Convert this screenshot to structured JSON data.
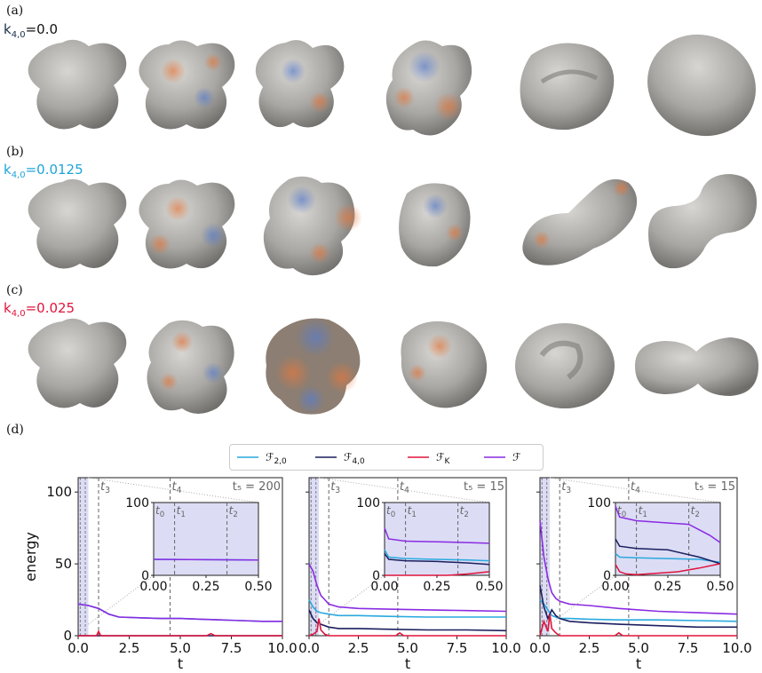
{
  "panels": [
    {
      "label": "(a)",
      "k_name": "k",
      "k_sub": "4,0",
      "k_value": "=0.0",
      "color": "#1a2f4a"
    },
    {
      "label": "(b)",
      "k_name": "k",
      "k_sub": "4,0",
      "k_value": "=0.0125",
      "color": "#1fa4d8"
    },
    {
      "label": "(c)",
      "k_name": "k",
      "k_sub": "4,0",
      "k_value": "=0.025",
      "color": "#e0143c"
    },
    {
      "label": "(d)"
    }
  ],
  "colors": {
    "F20": "#29a9de",
    "F40": "#1b1f5e",
    "FK": "#e0143c",
    "F": "#8a2be2",
    "inset_bg": "#dcdcf5",
    "shape": "#9b9a96"
  },
  "legend": [
    {
      "name": "F",
      "sub": "2,0",
      "color": "#29a9de"
    },
    {
      "name": "F",
      "sub": "4,0",
      "color": "#1b1f5e"
    },
    {
      "name": "F",
      "sub": "K",
      "color": "#e0143c"
    },
    {
      "name": "F",
      "sub": "",
      "color": "#8a2be2"
    }
  ],
  "chart_data": [
    {
      "type": "line",
      "ylabel": "energy",
      "xlabel": "t",
      "xlim": [
        0,
        10
      ],
      "ylim": [
        0,
        110
      ],
      "xticks": [
        "0.0",
        "2.5",
        "5.0",
        "7.5",
        "10.0"
      ],
      "yticks": [
        "0",
        "50",
        "100"
      ],
      "markers": [
        {
          "label": "t",
          "sub": "3",
          "x": 1.0
        },
        {
          "label": "t",
          "sub": "4",
          "x": 4.5
        }
      ],
      "end_label": "t₅ = 200",
      "series": [
        {
          "key": "F20",
          "x": [
            0,
            0.5,
            1.0,
            1.5,
            2.0,
            3,
            4,
            5,
            6,
            7,
            8,
            9,
            10
          ],
          "y": [
            22,
            21,
            19,
            15,
            13,
            12.5,
            12,
            12,
            11.5,
            11,
            10.5,
            10,
            10
          ]
        },
        {
          "key": "F40",
          "x": [
            0,
            10
          ],
          "y": [
            0,
            0
          ]
        },
        {
          "key": "FK",
          "x": [
            0,
            0.9,
            1.0,
            1.1,
            1.5,
            6.3,
            6.5,
            6.7,
            10
          ],
          "y": [
            0,
            0,
            3,
            0,
            0,
            0,
            1.5,
            0,
            0
          ]
        },
        {
          "key": "F",
          "x": [
            0,
            0.5,
            1.0,
            1.5,
            2.0,
            3,
            4,
            5,
            6,
            7,
            8,
            9,
            10
          ],
          "y": [
            22,
            21,
            19,
            15,
            13,
            12.5,
            12,
            12,
            11.5,
            11,
            10.5,
            10,
            10
          ]
        }
      ],
      "inset": {
        "xlim": [
          0,
          0.5
        ],
        "ylim": [
          0,
          100
        ],
        "xticks": [
          "0.00",
          "0.25",
          "0.50"
        ],
        "yticks": [
          "0",
          "100"
        ],
        "markers": [
          {
            "label": "t",
            "sub": "0",
            "x": 0
          },
          {
            "label": "t",
            "sub": "1",
            "x": 0.1
          },
          {
            "label": "t",
            "sub": "2",
            "x": 0.35
          }
        ],
        "series": [
          {
            "key": "F20",
            "x": [
              0,
              0.5
            ],
            "y": [
              22,
              21
            ]
          },
          {
            "key": "F",
            "x": [
              0,
              0.5
            ],
            "y": [
              22,
              21
            ]
          }
        ]
      }
    },
    {
      "type": "line",
      "xlabel": "t",
      "xlim": [
        0,
        10
      ],
      "ylim": [
        0,
        110
      ],
      "xticks": [
        "0.0",
        "2.5",
        "5.0",
        "7.5",
        "10.0"
      ],
      "markers": [
        {
          "label": "t",
          "sub": "3",
          "x": 1.0
        },
        {
          "label": "t",
          "sub": "4",
          "x": 4.5
        }
      ],
      "end_label": "t₅ = 15",
      "series": [
        {
          "key": "F20",
          "x": [
            0,
            0.2,
            0.4,
            0.6,
            1.0,
            1.5,
            2.5,
            4,
            6,
            8,
            10
          ],
          "y": [
            25,
            20,
            17,
            16,
            15,
            14,
            14,
            13.5,
            13,
            13,
            13
          ]
        },
        {
          "key": "F40",
          "x": [
            0,
            0.2,
            0.4,
            0.6,
            1.0,
            1.5,
            2.5,
            4,
            6,
            8,
            10
          ],
          "y": [
            18,
            12,
            9,
            8,
            6,
            5,
            5,
            4.5,
            4,
            4,
            3.5
          ]
        },
        {
          "key": "FK",
          "x": [
            0,
            0.2,
            0.4,
            0.5,
            0.6,
            0.8,
            1.0,
            4.4,
            4.6,
            4.8,
            10
          ],
          "y": [
            0,
            1,
            3,
            12,
            4,
            1,
            0,
            0,
            2,
            0,
            0
          ]
        },
        {
          "key": "F",
          "x": [
            0,
            0.2,
            0.4,
            0.6,
            0.8,
            1.0,
            1.5,
            2.5,
            4,
            6,
            8,
            10
          ],
          "y": [
            50,
            45,
            35,
            28,
            25,
            22,
            20,
            19,
            18.5,
            18,
            17.5,
            17
          ]
        }
      ],
      "inset": {
        "xlim": [
          0,
          0.5
        ],
        "ylim": [
          0,
          100
        ],
        "xticks": [
          "0.00",
          "0.25",
          "0.50"
        ],
        "yticks": [
          "0",
          "100"
        ],
        "markers": [
          {
            "label": "t",
            "sub": "0",
            "x": 0
          },
          {
            "label": "t",
            "sub": "1",
            "x": 0.1
          },
          {
            "label": "t",
            "sub": "2",
            "x": 0.35
          }
        ],
        "series": [
          {
            "key": "F20",
            "x": [
              0,
              0.02,
              0.1,
              0.25,
              0.4,
              0.5
            ],
            "y": [
              35,
              25,
              23,
              22,
              21,
              20
            ]
          },
          {
            "key": "F40",
            "x": [
              0,
              0.02,
              0.1,
              0.25,
              0.4,
              0.5
            ],
            "y": [
              30,
              22,
              20,
              19,
              17,
              15
            ]
          },
          {
            "key": "FK",
            "x": [
              0,
              0.3,
              0.4,
              0.5
            ],
            "y": [
              0,
              0,
              2,
              5
            ]
          },
          {
            "key": "F",
            "x": [
              0,
              0.02,
              0.1,
              0.25,
              0.4,
              0.5
            ],
            "y": [
              65,
              50,
              47,
              46,
              45,
              44
            ]
          }
        ]
      }
    },
    {
      "type": "line",
      "xlabel": "t",
      "xlim": [
        0,
        10
      ],
      "ylim": [
        0,
        110
      ],
      "xticks": [
        "0.0",
        "2.5",
        "5.0",
        "7.5",
        "10.0"
      ],
      "markers": [
        {
          "label": "t",
          "sub": "3",
          "x": 1.0
        },
        {
          "label": "t",
          "sub": "4",
          "x": 4.5
        }
      ],
      "end_label": "t₅ = 15",
      "series": [
        {
          "key": "F20",
          "x": [
            0,
            0.2,
            0.4,
            0.6,
            1.0,
            1.5,
            2.5,
            4,
            6,
            8,
            10
          ],
          "y": [
            25,
            22,
            18,
            14,
            12,
            12,
            11.5,
            11,
            11,
            10.5,
            10
          ]
        },
        {
          "key": "F40",
          "x": [
            0,
            0.2,
            0.4,
            0.6,
            0.8,
            1.0,
            1.5,
            2.5,
            4,
            6,
            8,
            10
          ],
          "y": [
            35,
            20,
            12,
            18,
            14,
            12,
            10,
            9,
            8,
            7,
            6,
            6
          ]
        },
        {
          "key": "FK",
          "x": [
            0,
            0.2,
            0.4,
            0.5,
            0.6,
            0.8,
            1.0,
            3.8,
            4.0,
            4.2,
            10
          ],
          "y": [
            0,
            10,
            3,
            15,
            5,
            2,
            0,
            0,
            2,
            0,
            0
          ]
        },
        {
          "key": "F",
          "x": [
            0,
            0.2,
            0.4,
            0.6,
            0.8,
            1.0,
            1.5,
            2.5,
            4,
            6,
            8,
            10
          ],
          "y": [
            80,
            55,
            40,
            30,
            26,
            24,
            22,
            21,
            19,
            17,
            16,
            15
          ]
        }
      ],
      "inset": {
        "xlim": [
          0,
          0.5
        ],
        "ylim": [
          0,
          100
        ],
        "xticks": [
          "0.00",
          "0.25",
          "0.50"
        ],
        "yticks": [
          "0",
          "100"
        ],
        "markers": [
          {
            "label": "t",
            "sub": "0",
            "x": 0
          },
          {
            "label": "t",
            "sub": "1",
            "x": 0.1
          },
          {
            "label": "t",
            "sub": "2",
            "x": 0.35
          }
        ],
        "series": [
          {
            "key": "F20",
            "x": [
              0,
              0.02,
              0.1,
              0.25,
              0.4,
              0.5
            ],
            "y": [
              30,
              25,
              24,
              23,
              22,
              18
            ]
          },
          {
            "key": "F40",
            "x": [
              0,
              0.02,
              0.1,
              0.25,
              0.4,
              0.5
            ],
            "y": [
              50,
              40,
              37,
              35,
              25,
              16
            ]
          },
          {
            "key": "FK",
            "x": [
              0,
              0.02,
              0.05,
              0.1,
              0.3,
              0.4,
              0.5
            ],
            "y": [
              15,
              5,
              2,
              1,
              5,
              10,
              16
            ]
          },
          {
            "key": "F",
            "x": [
              0,
              0.02,
              0.1,
              0.25,
              0.35,
              0.45,
              0.5
            ],
            "y": [
              95,
              80,
              75,
              72,
              70,
              55,
              45
            ]
          }
        ]
      }
    }
  ]
}
